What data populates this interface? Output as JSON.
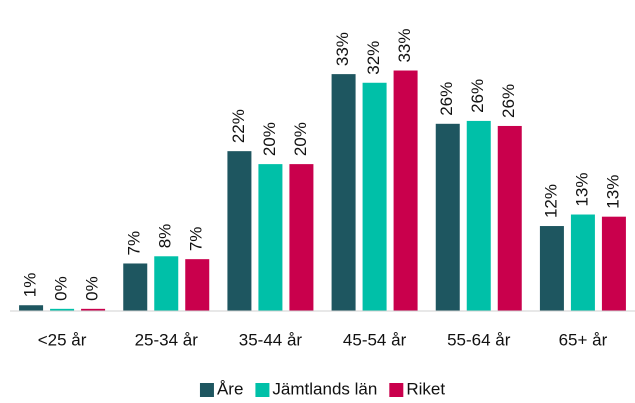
{
  "chart_data": {
    "type": "bar",
    "categories": [
      "<25 år",
      "25-34 år",
      "35-44 år",
      "45-54 år",
      "55-64 år",
      "65+ år"
    ],
    "series": [
      {
        "name": "Åre",
        "color": "#1e5660",
        "values": [
          0.8,
          6.6,
          22.2,
          32.9,
          26.0,
          11.8
        ],
        "value_labels": [
          "1%",
          "7%",
          "22%",
          "33%",
          "26%",
          "12%"
        ]
      },
      {
        "name": "Jämtlands län",
        "color": "#00c0a8",
        "values": [
          0.3,
          7.6,
          20.4,
          31.7,
          26.4,
          13.4
        ],
        "value_labels": [
          "0%",
          "8%",
          "20%",
          "32%",
          "26%",
          "13%"
        ]
      },
      {
        "name": "Riket",
        "color": "#c9004c",
        "values": [
          0.3,
          7.2,
          20.4,
          33.4,
          25.7,
          13.1
        ],
        "value_labels": [
          "0%",
          "7%",
          "20%",
          "33%",
          "26%",
          "13%"
        ]
      }
    ]
  }
}
